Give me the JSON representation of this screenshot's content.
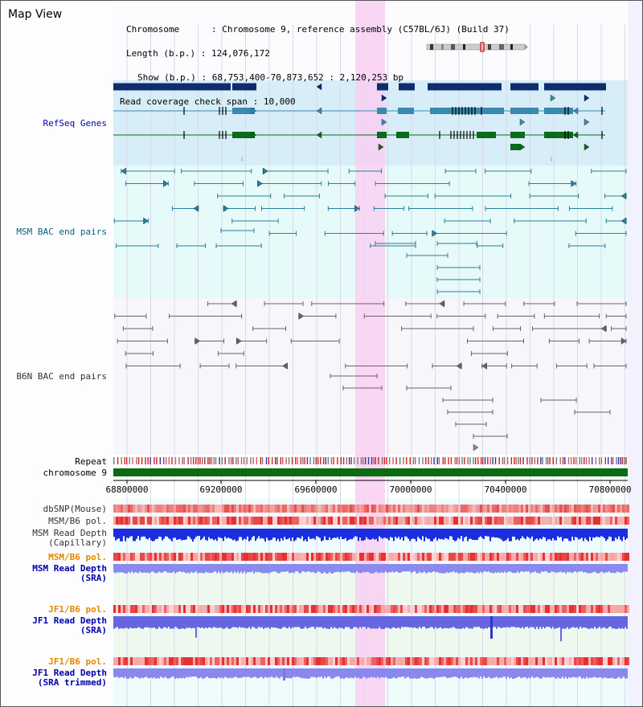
{
  "page": {
    "title": "Map View"
  },
  "info": {
    "chromosome_key": "Chromosome",
    "chromosome_val": "Chromosome 9, reference assembly (C57BL/6J) (Build 37)",
    "length_key": "Length (b.p.)",
    "length_val": "124,076,172",
    "show_key": "Show (b.p.)",
    "show_val": "68,753,400-70,873,652 : 2,120,253 bp",
    "coverage_key": "Read coverage check span",
    "coverage_val": "10,000"
  },
  "tracks": {
    "refseq": "RefSeq Genes",
    "msm_bac": "MSM BAC end pairs",
    "b6n_bac": "B6N BAC end pairs",
    "repeat": "Repeat",
    "chromosome": "chromosome 9",
    "dbsnp": "dbSNP(Mouse)",
    "msm_b6_pol": "MSM/B6 pol.",
    "msm_depth_cap_1": "MSM Read Depth",
    "msm_depth_cap_2": "(Capillary)",
    "msm_b6_pol2": "MSM/B6 pol.",
    "msm_depth_sra_1": "MSM Read Depth",
    "msm_depth_sra_2": "(SRA)",
    "jf1_b6_pol": "JF1/B6 pol.",
    "jf1_depth_sra_1": "JF1 Read Depth",
    "jf1_depth_sra_2": "(SRA)",
    "jf1_b6_pol2": "JF1/B6 pol.",
    "jf1_depth_trim_1": "JF1 Read Depth",
    "jf1_depth_trim_2": "(SRA trimmed)"
  },
  "axis": {
    "ticks": [
      "68800000",
      "69200000",
      "69600000",
      "70000000",
      "70400000",
      "70800000"
    ]
  },
  "colors": {
    "refseq_bg": "#d7eef8",
    "bac_bg": "#e6fafa",
    "highlight": "#f8d0f2",
    "gene_dark": "#0d2d6b",
    "gene_mid": "#3a8ab0",
    "gene_green": "#0a6b1a",
    "msm_label": "#006677",
    "b6n_label": "#333333",
    "blue_label": "#0000aa",
    "orange_label": "#e08800",
    "chrom_green": "#0b6b12"
  }
}
